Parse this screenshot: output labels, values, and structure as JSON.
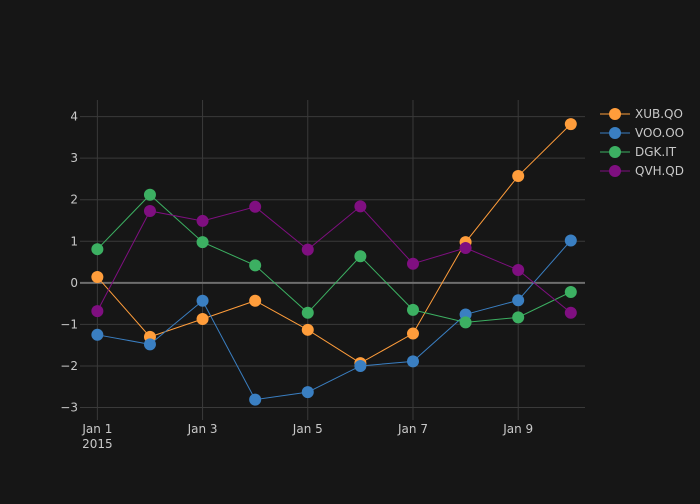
{
  "chart_data": {
    "type": "line",
    "title": "",
    "xlabel": "",
    "ylabel": "",
    "x": [
      "2015-01-01",
      "2015-01-02",
      "2015-01-03",
      "2015-01-04",
      "2015-01-05",
      "2015-01-06",
      "2015-01-07",
      "2015-01-08",
      "2015-01-09",
      "2015-01-10"
    ],
    "x_ticks": [
      {
        "value": "2015-01-01",
        "label": "Jan 1",
        "sublabel": "2015"
      },
      {
        "value": "2015-01-03",
        "label": "Jan 3",
        "sublabel": ""
      },
      {
        "value": "2015-01-05",
        "label": "Jan 5",
        "sublabel": ""
      },
      {
        "value": "2015-01-07",
        "label": "Jan 7",
        "sublabel": ""
      },
      {
        "value": "2015-01-09",
        "label": "Jan 9",
        "sublabel": ""
      }
    ],
    "ylim": [
      -3.3,
      4.4
    ],
    "y_ticks": [
      {
        "value": -3,
        "label": "−3"
      },
      {
        "value": -2,
        "label": "−2"
      },
      {
        "value": -1,
        "label": "−1"
      },
      {
        "value": 0,
        "label": "0"
      },
      {
        "value": 1,
        "label": "1"
      },
      {
        "value": 2,
        "label": "2"
      },
      {
        "value": 3,
        "label": "3"
      },
      {
        "value": 4,
        "label": "4"
      }
    ],
    "grid": true,
    "legend_position": "top-right",
    "series": [
      {
        "name": "XUB.QO",
        "color": "#ff9d3b",
        "values": [
          0.14,
          -1.3,
          -0.87,
          -0.43,
          -1.13,
          -1.93,
          -1.22,
          0.98,
          2.57,
          3.82
        ]
      },
      {
        "name": "VOO.OO",
        "color": "#3a7fc2",
        "values": [
          -1.25,
          -1.48,
          -0.43,
          -2.81,
          -2.63,
          -2.0,
          -1.89,
          -0.76,
          -0.42,
          1.02
        ]
      },
      {
        "name": "DGK.IT",
        "color": "#3cb062",
        "values": [
          0.81,
          2.12,
          0.98,
          0.42,
          -0.72,
          0.64,
          -0.65,
          -0.95,
          -0.83,
          -0.22
        ]
      },
      {
        "name": "QVH.QD",
        "color": "#7f0f80",
        "values": [
          -0.68,
          1.73,
          1.49,
          1.83,
          0.8,
          1.84,
          0.46,
          0.84,
          0.31,
          -0.72
        ]
      }
    ]
  }
}
